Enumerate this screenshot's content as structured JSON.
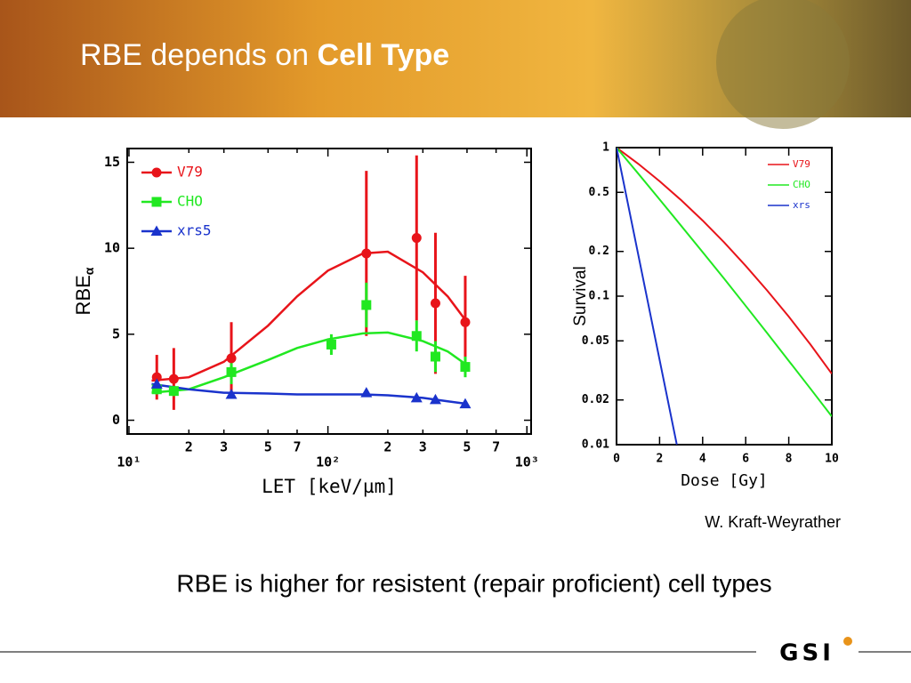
{
  "slide": {
    "title": "RBE depends on",
    "title_bold": "Cell Type",
    "credit": "W. Kraft-Weyrather",
    "caption": "RBE is higher for resistent (repair proficient) cell types",
    "logo": "GSI"
  },
  "chart_data": [
    {
      "type": "scatter",
      "x_label": "LET  [keV/µm]",
      "y_label": "RBE",
      "y_label_sub": "α",
      "xlog": true,
      "xlim": [
        9.8,
        1050
      ],
      "ylim": [
        -0.8,
        15.8
      ],
      "xticks": [
        {
          "value": 10,
          "label": "10¹"
        },
        {
          "value": 20,
          "label": "2"
        },
        {
          "value": 30,
          "label": "3"
        },
        {
          "value": 50,
          "label": "5"
        },
        {
          "value": 70,
          "label": "7"
        },
        {
          "value": 100,
          "label": "10²"
        },
        {
          "value": 200,
          "label": "2"
        },
        {
          "value": 300,
          "label": "3"
        },
        {
          "value": 500,
          "label": "5"
        },
        {
          "value": 700,
          "label": "7"
        },
        {
          "value": 1000,
          "label": "10³"
        }
      ],
      "yticks": [
        0,
        5,
        10,
        15
      ],
      "legend": "upper left",
      "x": [
        13.8,
        16.8,
        32.7,
        104,
        156,
        279,
        347,
        490
      ],
      "fit_x": [
        13,
        20,
        30,
        50,
        70,
        100,
        150,
        200,
        300,
        400,
        500
      ],
      "series": [
        {
          "name": "V79",
          "color": "#e8141a",
          "marker": "circle",
          "values": [
            2.5,
            2.4,
            3.6,
            null,
            9.7,
            10.6,
            6.8,
            5.7
          ],
          "errors": [
            1.3,
            1.8,
            2.1,
            null,
            4.8,
            4.8,
            4.1,
            2.7
          ],
          "fit": [
            2.3,
            2.5,
            3.4,
            5.5,
            7.2,
            8.7,
            9.7,
            9.8,
            8.6,
            7.2,
            5.7
          ]
        },
        {
          "name": "CHO",
          "color": "#21e821",
          "marker": "square",
          "values": [
            1.8,
            1.7,
            2.8,
            4.4,
            6.7,
            4.9,
            3.7,
            3.1
          ],
          "errors": [
            0.3,
            0.3,
            0.7,
            0.6,
            1.3,
            0.9,
            0.9,
            0.6
          ],
          "fit": [
            1.6,
            1.8,
            2.5,
            3.5,
            4.2,
            4.7,
            5.05,
            5.1,
            4.6,
            4.0,
            3.2
          ]
        },
        {
          "name": "xrs5",
          "color": "#1a33cc",
          "marker": "triangle",
          "values": [
            2.1,
            null,
            1.5,
            null,
            1.6,
            1.3,
            1.2,
            0.95
          ],
          "errors": [
            0.2,
            null,
            0.2,
            null,
            0.1,
            0.1,
            0.1,
            0.1
          ],
          "fit": [
            2.1,
            1.8,
            1.6,
            1.55,
            1.5,
            1.5,
            1.5,
            1.45,
            1.3,
            1.1,
            0.95
          ]
        }
      ]
    },
    {
      "type": "line",
      "x_label": "Dose  [Gy]",
      "y_label": "Survival",
      "ylog": true,
      "xlim": [
        0,
        10
      ],
      "ylim": [
        0.01,
        1
      ],
      "xticks": [
        0,
        2,
        4,
        6,
        8,
        10
      ],
      "yticks": [
        1,
        0.5,
        0.2,
        0.1,
        0.05,
        0.02,
        0.01
      ],
      "legend": "upper right",
      "series": [
        {
          "name": "V79",
          "color": "#e8141a",
          "x": [
            0,
            1,
            2,
            3,
            4,
            5,
            6,
            7,
            8,
            9,
            10
          ],
          "values": [
            1,
            0.78,
            0.594,
            0.443,
            0.323,
            0.23,
            0.16,
            0.109,
            0.0728,
            0.0474,
            0.03
          ]
        },
        {
          "name": "CHO",
          "color": "#21e821",
          "x": [
            0,
            1,
            2,
            3,
            4,
            5,
            6,
            7,
            8,
            9,
            10
          ],
          "values": [
            1,
            0.671,
            0.448,
            0.298,
            0.198,
            0.131,
            0.086,
            0.0563,
            0.0367,
            0.0239,
            0.0155
          ]
        },
        {
          "name": "xrs",
          "color": "#1a33cc",
          "x": [
            0,
            2.8
          ],
          "values": [
            1,
            0.01
          ]
        }
      ]
    }
  ]
}
